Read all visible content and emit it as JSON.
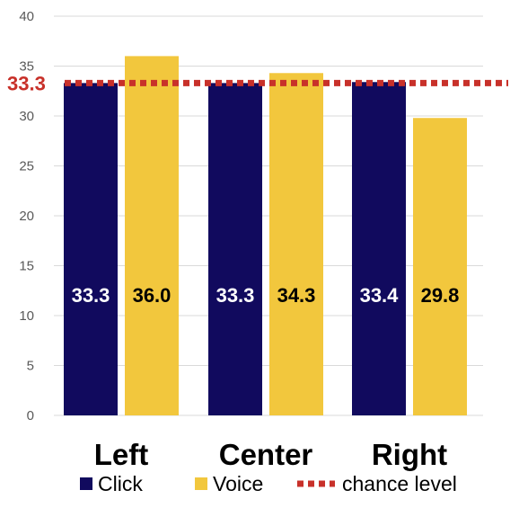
{
  "chart_data": {
    "type": "bar",
    "categories": [
      "Left",
      "Center",
      "Right"
    ],
    "series": [
      {
        "name": "Click",
        "color": "#110a5e",
        "label_color": "#ffffff",
        "values": [
          33.3,
          33.3,
          33.4
        ],
        "labels": [
          "33.3",
          "33.3",
          "33.4"
        ]
      },
      {
        "name": "Voice",
        "color": "#f2c73d",
        "label_color": "#000000",
        "values": [
          36.0,
          34.3,
          29.8
        ],
        "labels": [
          "36.0",
          "34.3",
          "29.8"
        ]
      }
    ],
    "reference_line": {
      "name": "chance level",
      "value": 33.3,
      "label": "33.3",
      "color": "#c8312a",
      "style": "dotted"
    },
    "ylim": [
      0,
      40
    ],
    "yticks": [
      0,
      5,
      10,
      15,
      20,
      25,
      30,
      35,
      40
    ],
    "ytick_labels": [
      "0",
      "5",
      "10",
      "15",
      "20",
      "25",
      "30",
      "35",
      "40"
    ],
    "grid": true,
    "legend_position": "bottom",
    "title": "",
    "xlabel": "",
    "ylabel": ""
  }
}
